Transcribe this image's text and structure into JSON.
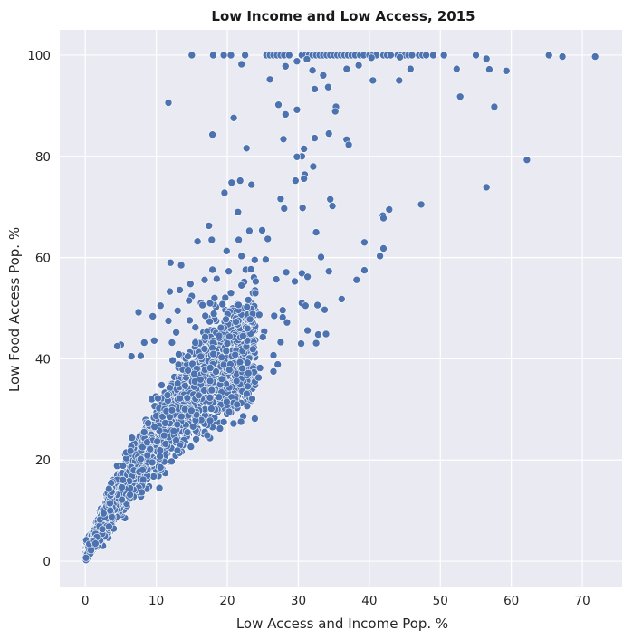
{
  "chart_data": {
    "type": "scatter",
    "title": "Low Income and Low Access, 2015",
    "xlabel": "Low Access and Income Pop. %",
    "ylabel": "Low Food Access Pop. %",
    "xlim": [
      -3.6,
      75.6
    ],
    "ylim": [
      -5,
      105
    ],
    "xticks": [
      0,
      10,
      20,
      30,
      40,
      50,
      60,
      70
    ],
    "yticks": [
      0,
      20,
      40,
      60,
      80,
      100
    ],
    "grid": true,
    "background": "#eaeaf2",
    "point_color": "#4c72b0",
    "dense_cluster": {
      "note": "Several thousand points in a dense band roughly from (0,0) to (25,45)",
      "generated": true
    },
    "points": [
      [
        15,
        100
      ],
      [
        18,
        100
      ],
      [
        19.5,
        100
      ],
      [
        20.5,
        100
      ],
      [
        22.5,
        100
      ],
      [
        25.5,
        100
      ],
      [
        26,
        100
      ],
      [
        26.5,
        100
      ],
      [
        27,
        100
      ],
      [
        27.5,
        100
      ],
      [
        28,
        100
      ],
      [
        28.7,
        100
      ],
      [
        30.5,
        100
      ],
      [
        31,
        100
      ],
      [
        31.5,
        100
      ],
      [
        32,
        100
      ],
      [
        32.5,
        100
      ],
      [
        33,
        100
      ],
      [
        33.5,
        100
      ],
      [
        34,
        100
      ],
      [
        34.5,
        100
      ],
      [
        35,
        100
      ],
      [
        35.5,
        100
      ],
      [
        36,
        100
      ],
      [
        36.5,
        100
      ],
      [
        37,
        100
      ],
      [
        37.5,
        100
      ],
      [
        38,
        100
      ],
      [
        38.7,
        100
      ],
      [
        39.2,
        100
      ],
      [
        40,
        100
      ],
      [
        40.5,
        100
      ],
      [
        41,
        100
      ],
      [
        42,
        100
      ],
      [
        42.5,
        100
      ],
      [
        43,
        100
      ],
      [
        44,
        100
      ],
      [
        44.5,
        100
      ],
      [
        45,
        100
      ],
      [
        45.5,
        100
      ],
      [
        46,
        100
      ],
      [
        47,
        100
      ],
      [
        47.5,
        100
      ],
      [
        48,
        100
      ],
      [
        49,
        100
      ],
      [
        50.5,
        100
      ],
      [
        55,
        100
      ],
      [
        65.3,
        100
      ],
      [
        67.2,
        99.7
      ],
      [
        71.8,
        99.7
      ],
      [
        56.5,
        99.3
      ],
      [
        40.3,
        99.5
      ],
      [
        44.3,
        99.6
      ],
      [
        31.2,
        99.2
      ],
      [
        22,
        98.2
      ],
      [
        28.2,
        97.8
      ],
      [
        29.8,
        98.8
      ],
      [
        36.8,
        97.3
      ],
      [
        38.5,
        98
      ],
      [
        45.8,
        97.3
      ],
      [
        52.3,
        97.3
      ],
      [
        56.9,
        97.2
      ],
      [
        59.3,
        96.9
      ],
      [
        32,
        97
      ],
      [
        33.5,
        96
      ],
      [
        26,
        95.2
      ],
      [
        40.5,
        95
      ],
      [
        44.2,
        95
      ],
      [
        32.3,
        93.3
      ],
      [
        34.2,
        93.7
      ],
      [
        52.8,
        91.8
      ],
      [
        11.7,
        90.6
      ],
      [
        27.2,
        90.2
      ],
      [
        35.3,
        89.8
      ],
      [
        35.2,
        88.9
      ],
      [
        28.2,
        88.3
      ],
      [
        29.8,
        89.2
      ],
      [
        57.6,
        89.8
      ],
      [
        20.9,
        87.6
      ],
      [
        34.3,
        84.5
      ],
      [
        17.9,
        84.3
      ],
      [
        32.3,
        83.6
      ],
      [
        27.9,
        83.4
      ],
      [
        36.8,
        83.3
      ],
      [
        37.1,
        82.3
      ],
      [
        22.7,
        81.6
      ],
      [
        30.8,
        81.5
      ],
      [
        30.5,
        80
      ],
      [
        29.8,
        79.9
      ],
      [
        62.2,
        79.3
      ],
      [
        32.1,
        78
      ],
      [
        30.9,
        76.4
      ],
      [
        30.8,
        75.6
      ],
      [
        21.8,
        75.2
      ],
      [
        29.6,
        75.2
      ],
      [
        20.6,
        74.8
      ],
      [
        23.4,
        74.4
      ],
      [
        56.5,
        73.9
      ],
      [
        19.6,
        72.8
      ],
      [
        27.5,
        71.6
      ],
      [
        34.5,
        71.5
      ],
      [
        34.8,
        70.2
      ],
      [
        47.3,
        70.5
      ],
      [
        28,
        69.7
      ],
      [
        30.6,
        69.8
      ],
      [
        42.8,
        69.5
      ],
      [
        21.5,
        69
      ],
      [
        41.9,
        68.3
      ],
      [
        42,
        67.8
      ],
      [
        17.4,
        66.3
      ],
      [
        24.9,
        65.4
      ],
      [
        23.1,
        65.3
      ],
      [
        32.5,
        65
      ],
      [
        25.7,
        63.7
      ],
      [
        39.3,
        63
      ],
      [
        15.8,
        63.2
      ],
      [
        17.8,
        63.5
      ],
      [
        21.6,
        63.5
      ],
      [
        42,
        61.8
      ],
      [
        19.9,
        61.3
      ],
      [
        41.5,
        60.3
      ],
      [
        22,
        60.3
      ],
      [
        33.2,
        60.1
      ],
      [
        25.4,
        59.6
      ],
      [
        17.9,
        57.6
      ],
      [
        28.3,
        57.1
      ],
      [
        34.3,
        57.3
      ],
      [
        12,
        59
      ],
      [
        13.5,
        58.5
      ],
      [
        39.3,
        57.5
      ],
      [
        30.5,
        56.9
      ],
      [
        31.3,
        56.2
      ],
      [
        38.2,
        55.6
      ],
      [
        26.9,
        55.7
      ],
      [
        29.5,
        55.3
      ]
    ],
    "points_moderate": [
      [
        7.5,
        49.2
      ],
      [
        11.7,
        47.5
      ],
      [
        14.7,
        47.6
      ],
      [
        16.9,
        48.5
      ],
      [
        18.1,
        48.9
      ],
      [
        19.8,
        47.8
      ],
      [
        21.2,
        47.3
      ],
      [
        23.2,
        47.8
      ],
      [
        24.5,
        48.7
      ],
      [
        26.6,
        48.5
      ],
      [
        27.8,
        49.6
      ],
      [
        28.4,
        47.2
      ],
      [
        30.5,
        51
      ],
      [
        31,
        50.5
      ],
      [
        32.7,
        50.6
      ],
      [
        33.7,
        49.7
      ],
      [
        36.1,
        51.8
      ],
      [
        25.2,
        45.4
      ],
      [
        22.8,
        43.6
      ],
      [
        25,
        44.3
      ],
      [
        27.5,
        43.3
      ],
      [
        30.4,
        43
      ],
      [
        32.5,
        43.1
      ],
      [
        32.8,
        44.8
      ],
      [
        31.3,
        45.6
      ],
      [
        33.9,
        44.9
      ],
      [
        24.6,
        38.2
      ],
      [
        26.5,
        40.7
      ],
      [
        27.1,
        38.9
      ],
      [
        26.5,
        37.5
      ],
      [
        24.4,
        36.3
      ],
      [
        21.3,
        35.6
      ],
      [
        23.5,
        32.1
      ],
      [
        19.9,
        31.5
      ],
      [
        17.8,
        33.8
      ],
      [
        19.5,
        27.5
      ],
      [
        5,
        42.8
      ],
      [
        4.5,
        42.5
      ],
      [
        9.5,
        48.4
      ],
      [
        12.8,
        45.2
      ],
      [
        15,
        52.4
      ],
      [
        16.3,
        51
      ],
      [
        18.2,
        52
      ],
      [
        20.5,
        53
      ],
      [
        22,
        54.5
      ],
      [
        24,
        55.3
      ],
      [
        14.8,
        54.8
      ],
      [
        16.8,
        55.6
      ],
      [
        18.5,
        55.8
      ],
      [
        13.3,
        53.6
      ],
      [
        11.9,
        53.3
      ],
      [
        10.6,
        50.5
      ],
      [
        13,
        49.5
      ],
      [
        15.5,
        46.2
      ],
      [
        12.2,
        43.2
      ],
      [
        20.3,
        44.4
      ],
      [
        22.2,
        44.5
      ],
      [
        23.6,
        41.9
      ],
      [
        21.1,
        40.8
      ],
      [
        19.2,
        40.3
      ],
      [
        17.6,
        38.2
      ],
      [
        16.2,
        35.9
      ],
      [
        22.1,
        38.1
      ],
      [
        27.8,
        48.2
      ],
      [
        20.2,
        57.3
      ],
      [
        14.6,
        51.5
      ],
      [
        16.5,
        50.6
      ],
      [
        9.7,
        43.6
      ],
      [
        7.8,
        40.6
      ],
      [
        6.5,
        40.5
      ],
      [
        8.3,
        43.2
      ]
    ]
  }
}
